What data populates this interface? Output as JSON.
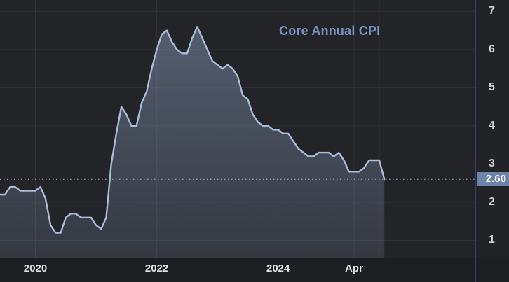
{
  "title": {
    "text": "Core Annual CPI"
  },
  "last_value": {
    "label": "2.60",
    "value": 2.6
  },
  "colors": {
    "plot_bg": "#232428",
    "axis_bg": "#1d1e21",
    "grid": "#303237",
    "axis_line": "#3e3d63",
    "line": "#a9bcd9",
    "area_top": "rgba(142,162,196,0.46)",
    "area_bottom": "rgba(142,162,196,0.16)",
    "ref_line": "#a2b6d8",
    "title_text": "#7695c5",
    "y_label_text": "#cfd0d3",
    "x_label_text": "#e0e1e3",
    "last_box_bg": "#6e83aa",
    "last_box_text": "#ffffff"
  },
  "chart_data": {
    "type": "area",
    "title": "Core Annual CPI",
    "unit": "percent",
    "xlim": [
      "2019-06",
      "2027-04"
    ],
    "ylim": [
      0.55,
      7.3
    ],
    "grid": true,
    "y_ticks": [
      1,
      2,
      3,
      4,
      5,
      6,
      7
    ],
    "x_ticks": [
      {
        "month": "2020-01",
        "label": "2020"
      },
      {
        "month": "2022-01",
        "label": "2022"
      },
      {
        "month": "2024-01",
        "label": "2024"
      },
      {
        "month": "2025-04",
        "label": "Apr"
      },
      {
        "month": "2025-09",
        "label": ""
      }
    ],
    "ref_line": {
      "value": 2.6,
      "style": "dotted"
    },
    "series": [
      {
        "name": "Core Annual CPI",
        "start": "2019-06",
        "freq": "monthly",
        "values": [
          2.2,
          2.2,
          2.4,
          2.4,
          2.3,
          2.3,
          2.3,
          2.3,
          2.4,
          2.1,
          1.4,
          1.2,
          1.2,
          1.6,
          1.7,
          1.7,
          1.6,
          1.6,
          1.6,
          1.4,
          1.3,
          1.6,
          3.0,
          3.8,
          4.5,
          4.3,
          4.0,
          4.0,
          4.6,
          4.9,
          5.5,
          6.0,
          6.4,
          6.5,
          6.2,
          6.0,
          5.9,
          5.9,
          6.3,
          6.6,
          6.3,
          6.0,
          5.7,
          5.6,
          5.5,
          5.6,
          5.5,
          5.3,
          4.8,
          4.7,
          4.3,
          4.1,
          4.0,
          4.0,
          3.9,
          3.9,
          3.8,
          3.8,
          3.6,
          3.4,
          3.3,
          3.2,
          3.2,
          3.3,
          3.3,
          3.3,
          3.2,
          3.3,
          3.1,
          2.8,
          2.8,
          2.8,
          2.9,
          3.1,
          3.1,
          3.1,
          2.6
        ]
      }
    ]
  }
}
